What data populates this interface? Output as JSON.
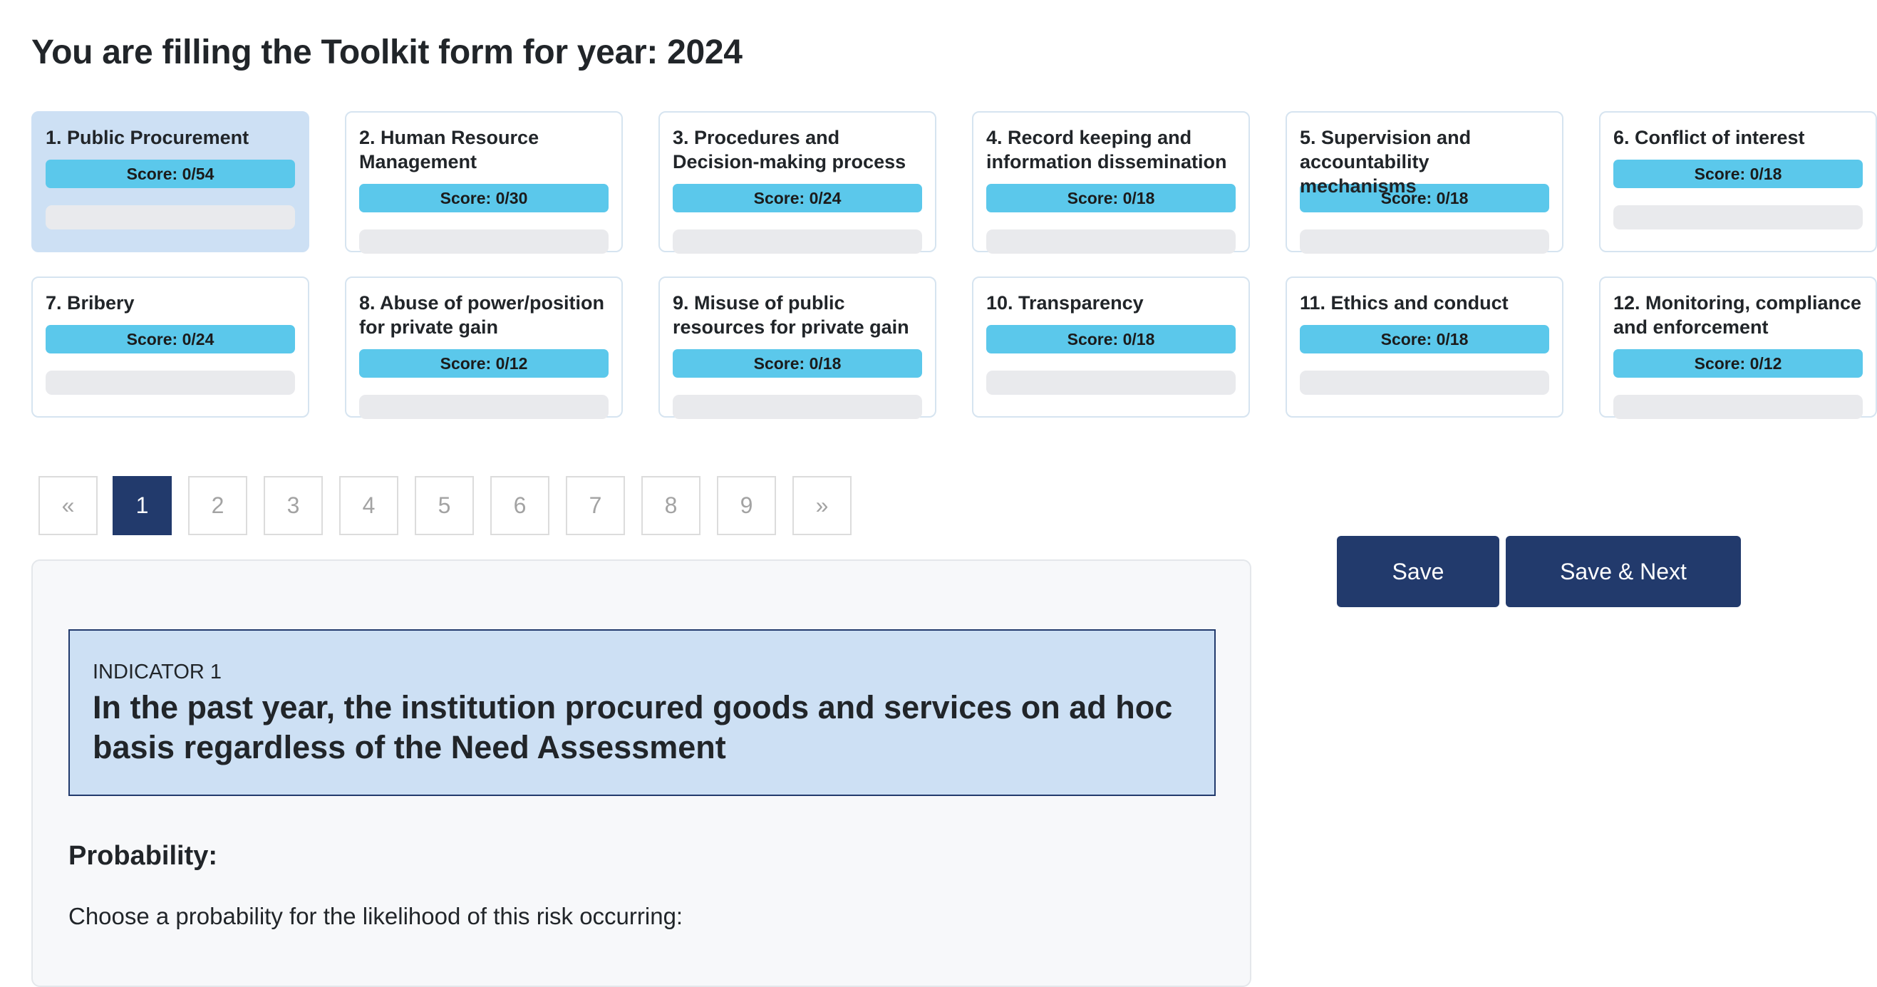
{
  "page": {
    "title": "You are filling the Toolkit form for year: 2024"
  },
  "cards": [
    {
      "title": "1. Public Procurement",
      "score": "Score: 0/54",
      "active": true
    },
    {
      "title": "2. Human Resource Management",
      "score": "Score: 0/30"
    },
    {
      "title": "3. Procedures and Decision-making process",
      "score": "Score: 0/24"
    },
    {
      "title": "4. Record keeping and information dissemination",
      "score": "Score: 0/18"
    },
    {
      "title": "5. Supervision and accountability mechanisms",
      "score": "Score: 0/18"
    },
    {
      "title": "6. Conflict of interest",
      "score": "Score: 0/18"
    },
    {
      "title": "7. Bribery",
      "score": "Score: 0/24"
    },
    {
      "title": "8. Abuse of power/position for private gain",
      "score": "Score: 0/12"
    },
    {
      "title": "9. Misuse of public resources for private gain",
      "score": "Score: 0/18"
    },
    {
      "title": "10. Transparency",
      "score": "Score: 0/18"
    },
    {
      "title": "11. Ethics and conduct",
      "score": "Score: 0/18"
    },
    {
      "title": "12. Monitoring, compliance and enforcement",
      "score": "Score: 0/12"
    }
  ],
  "pagination": {
    "prev": "«",
    "next": "»",
    "pages": [
      "1",
      "2",
      "3",
      "4",
      "5",
      "6",
      "7",
      "8",
      "9"
    ],
    "current": "1"
  },
  "actions": {
    "save": "Save",
    "save_next": "Save & Next"
  },
  "indicator": {
    "label": "INDICATOR 1",
    "text": "In the past year, the institution procured goods and services on ad hoc basis regardless of the Need Assessment"
  },
  "probability": {
    "heading": "Probability:",
    "description": "Choose a probability for the likelihood of this risk occurring:"
  },
  "colors": {
    "accent": "#223a6c",
    "score_badge": "#5bc8eb",
    "active_card": "#cde0f4"
  }
}
